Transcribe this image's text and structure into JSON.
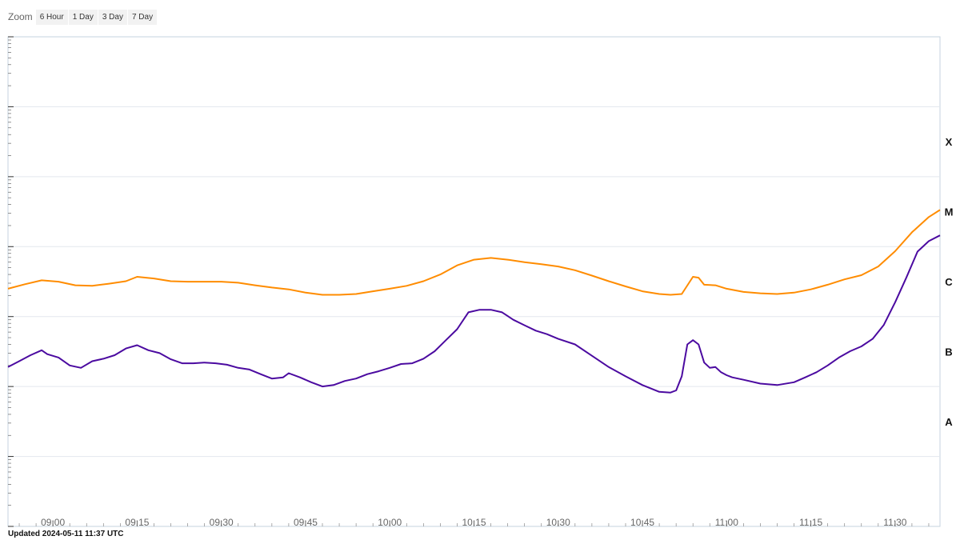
{
  "zoom": {
    "label": "Zoom",
    "buttons": [
      "6 Hour",
      "1 Day",
      "3 Day",
      "7 Day"
    ]
  },
  "updated_text": "Updated 2024-05-11 11:37 UTC",
  "colors": {
    "series_long": "#ff8c00",
    "series_short": "#4b0aa0",
    "grid": "#e3e7ee",
    "axis": "#c6d3df"
  },
  "chart_data": {
    "type": "line",
    "title": "",
    "xlabel": "",
    "ylabel": "",
    "y_scale": "log",
    "ylim": [
      1e-09,
      0.01
    ],
    "x_range": [
      "08:52",
      "11:38"
    ],
    "y_bands": [
      "X",
      "M",
      "C",
      "B",
      "A"
    ],
    "x_ticks": [
      "09:00",
      "09:15",
      "09:30",
      "09:45",
      "10:00",
      "10:15",
      "10:30",
      "10:45",
      "11:00",
      "11:15",
      "11:30"
    ],
    "grid": true,
    "series": [
      {
        "color": "#ff8c00",
        "x": [
          "08:52",
          "08:55",
          "08:58",
          "09:01",
          "09:04",
          "09:07",
          "09:10",
          "09:13",
          "09:15",
          "09:18",
          "09:21",
          "09:24",
          "09:27",
          "09:30",
          "09:33",
          "09:36",
          "09:39",
          "09:42",
          "09:45",
          "09:48",
          "09:51",
          "09:54",
          "09:57",
          "10:00",
          "10:03",
          "10:06",
          "10:09",
          "10:12",
          "10:15",
          "10:18",
          "10:21",
          "10:24",
          "10:27",
          "10:30",
          "10:33",
          "10:36",
          "10:39",
          "10:42",
          "10:45",
          "10:48",
          "10:50",
          "10:52",
          "10:54",
          "10:55",
          "10:56",
          "10:58",
          "11:00",
          "11:03",
          "11:06",
          "11:09",
          "11:12",
          "11:15",
          "11:18",
          "11:21",
          "11:24",
          "11:27",
          "11:30",
          "11:33",
          "11:36",
          "11:38"
        ],
        "y": [
          2.5e-06,
          2.9e-06,
          3.3e-06,
          3.15e-06,
          2.8e-06,
          2.75e-06,
          2.95e-06,
          3.2e-06,
          3.7e-06,
          3.5e-06,
          3.2e-06,
          3.15e-06,
          3.15e-06,
          3.15e-06,
          3.05e-06,
          2.8e-06,
          2.6e-06,
          2.45e-06,
          2.2e-06,
          2.05e-06,
          2.05e-06,
          2.1e-06,
          2.3e-06,
          2.5e-06,
          2.75e-06,
          3.2e-06,
          4e-06,
          5.4e-06,
          6.5e-06,
          6.9e-06,
          6.5e-06,
          6e-06,
          5.6e-06,
          5.2e-06,
          4.6e-06,
          3.85e-06,
          3.2e-06,
          2.7e-06,
          2.3e-06,
          2.1e-06,
          2.05e-06,
          2.1e-06,
          3.7e-06,
          3.6e-06,
          2.85e-06,
          2.8e-06,
          2.5e-06,
          2.25e-06,
          2.15e-06,
          2.1e-06,
          2.2e-06,
          2.45e-06,
          2.85e-06,
          3.4e-06,
          3.9e-06,
          5.2e-06,
          8.6e-06,
          1.6e-05,
          2.65e-05,
          3.35e-05
        ]
      },
      {
        "color": "#4b0aa0",
        "x": [
          "08:52",
          "08:54",
          "08:56",
          "08:58",
          "08:59",
          "09:01",
          "09:03",
          "09:05",
          "09:07",
          "09:09",
          "09:11",
          "09:13",
          "09:15",
          "09:17",
          "09:19",
          "09:21",
          "09:23",
          "09:25",
          "09:27",
          "09:29",
          "09:31",
          "09:33",
          "09:35",
          "09:37",
          "09:39",
          "09:41",
          "09:42",
          "09:44",
          "09:46",
          "09:48",
          "09:50",
          "09:52",
          "09:54",
          "09:56",
          "09:58",
          "10:00",
          "10:02",
          "10:04",
          "10:06",
          "10:08",
          "10:10",
          "10:12",
          "10:14",
          "10:16",
          "10:18",
          "10:20",
          "10:22",
          "10:24",
          "10:26",
          "10:28",
          "10:30",
          "10:33",
          "10:36",
          "10:39",
          "10:42",
          "10:45",
          "10:48",
          "10:50",
          "10:51",
          "10:52",
          "10:53",
          "10:54",
          "10:55",
          "10:56",
          "10:57",
          "10:58",
          "10:59",
          "11:00",
          "11:01",
          "11:03",
          "11:06",
          "11:09",
          "11:12",
          "11:14",
          "11:16",
          "11:18",
          "11:20",
          "11:22",
          "11:24",
          "11:26",
          "11:28",
          "11:30",
          "11:32",
          "11:34",
          "11:36",
          "11:38"
        ],
        "y": [
          1.9e-07,
          2.3e-07,
          2.8e-07,
          3.3e-07,
          2.9e-07,
          2.6e-07,
          2e-07,
          1.85e-07,
          2.3e-07,
          2.5e-07,
          2.8e-07,
          3.5e-07,
          3.9e-07,
          3.3e-07,
          3e-07,
          2.45e-07,
          2.15e-07,
          2.15e-07,
          2.2e-07,
          2.15e-07,
          2.05e-07,
          1.85e-07,
          1.75e-07,
          1.5e-07,
          1.3e-07,
          1.35e-07,
          1.55e-07,
          1.35e-07,
          1.15e-07,
          1e-07,
          1.05e-07,
          1.2e-07,
          1.3e-07,
          1.5e-07,
          1.65e-07,
          1.85e-07,
          2.1e-07,
          2.15e-07,
          2.5e-07,
          3.2e-07,
          4.6e-07,
          6.6e-07,
          1.15e-06,
          1.25e-06,
          1.25e-06,
          1.15e-06,
          9e-07,
          7.5e-07,
          6.3e-07,
          5.6e-07,
          4.8e-07,
          4e-07,
          2.75e-07,
          1.9e-07,
          1.4e-07,
          1.05e-07,
          8.4e-08,
          8.2e-08,
          8.8e-08,
          1.4e-07,
          4e-07,
          4.6e-07,
          4e-07,
          2.2e-07,
          1.85e-07,
          1.9e-07,
          1.6e-07,
          1.45e-07,
          1.35e-07,
          1.25e-07,
          1.1e-07,
          1.05e-07,
          1.15e-07,
          1.35e-07,
          1.6e-07,
          2e-07,
          2.6e-07,
          3.2e-07,
          3.75e-07,
          4.8e-07,
          7.6e-07,
          1.6e-06,
          3.6e-06,
          8.5e-06,
          1.2e-05,
          1.45e-05
        ]
      }
    ]
  }
}
